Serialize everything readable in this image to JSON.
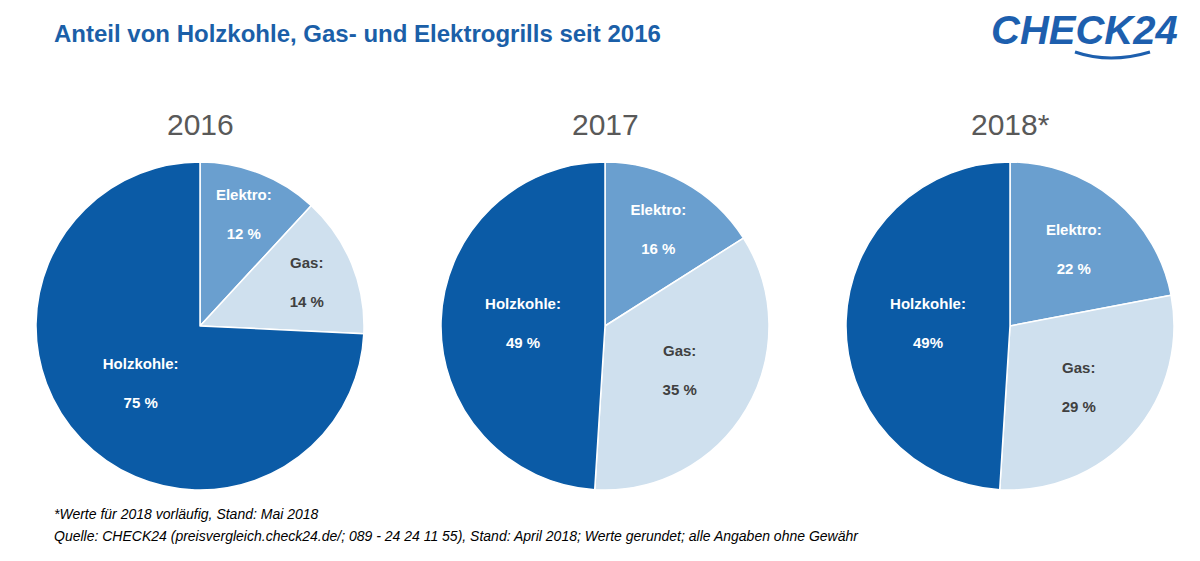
{
  "title": "Anteil von Holzkohle, Gas- und Elektrogrills seit 2016",
  "logo": "CHECK24",
  "footnotes": [
    "*Werte für 2018 vorläufig, Stand: Mai 2018",
    "Quelle: CHECK24 (preisvergleich.check24.de/; 089 - 24 24 11 55), Stand: April 2018; Werte gerundet; alle Angaben ohne Gewähr"
  ],
  "chart_data": [
    {
      "type": "pie",
      "title": "2016",
      "categories": [
        "Elektro:",
        "Gas:",
        "Holzkohle:"
      ],
      "values": [
        12,
        14,
        75
      ],
      "value_labels": [
        "12 %",
        "14 %",
        "75 %"
      ],
      "colors": [
        "#6a9fcf",
        "#cfe0ee",
        "#0b5ba6"
      ],
      "data_labels": true
    },
    {
      "type": "pie",
      "title": "2017",
      "categories": [
        "Elektro:",
        "Gas:",
        "Holzkohle:"
      ],
      "values": [
        16,
        35,
        49
      ],
      "value_labels": [
        "16 %",
        "35 %",
        "49 %"
      ],
      "colors": [
        "#6a9fcf",
        "#cfe0ee",
        "#0b5ba6"
      ],
      "data_labels": true
    },
    {
      "type": "pie",
      "title": "2018*",
      "categories": [
        "Elektro:",
        "Gas:",
        "Holzkohle:"
      ],
      "values": [
        22,
        29,
        49
      ],
      "value_labels": [
        "22 %",
        "29 %",
        "49%"
      ],
      "colors": [
        "#6a9fcf",
        "#cfe0ee",
        "#0b5ba6"
      ],
      "data_labels": true
    }
  ]
}
